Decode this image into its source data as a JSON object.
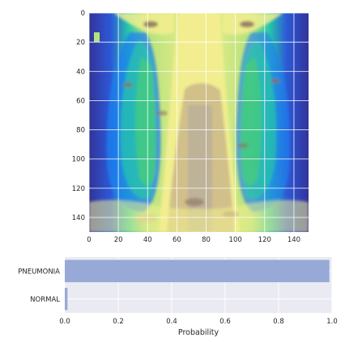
{
  "chart_data": [
    {
      "type": "heatmap",
      "title": "",
      "xlabel": "",
      "ylabel": "",
      "xlim": [
        0,
        150
      ],
      "ylim": [
        150,
        0
      ],
      "x_ticks": [
        0,
        20,
        40,
        60,
        80,
        100,
        120,
        140
      ],
      "y_ticks": [
        0,
        20,
        40,
        60,
        80,
        100,
        120,
        140
      ],
      "colormap": "terrain",
      "description_values": "pseudo-colored chest X-ray image, 150x150 pixels",
      "grid": true,
      "colors": {
        "deep_blue": "#333399",
        "blue": "#1a80f0",
        "cyan": "#27c8a8",
        "green": "#4dd26a",
        "light_green": "#b4e27a",
        "yellow": "#f2ee8f",
        "tan": "#c9b58a",
        "brown": "#8c7260",
        "grey": "#b3aaa0"
      }
    },
    {
      "type": "bar",
      "orientation": "horizontal",
      "categories": [
        "PNEUMONIA",
        "NORMAL"
      ],
      "values": [
        0.99,
        0.01
      ],
      "xlabel": "Probability",
      "ylabel": "",
      "title": "",
      "xlim": [
        0,
        1
      ],
      "x_ticks": [
        0.0,
        0.2,
        0.4,
        0.6,
        0.8,
        1.0
      ],
      "x_tick_labels": [
        "0.0",
        "0.2",
        "0.4",
        "0.6",
        "0.8",
        "1.0"
      ],
      "grid": true,
      "colors": {
        "bar": "#97a9d6",
        "axes_bg": "#eaeaf2",
        "grid": "#ffffff"
      }
    }
  ]
}
